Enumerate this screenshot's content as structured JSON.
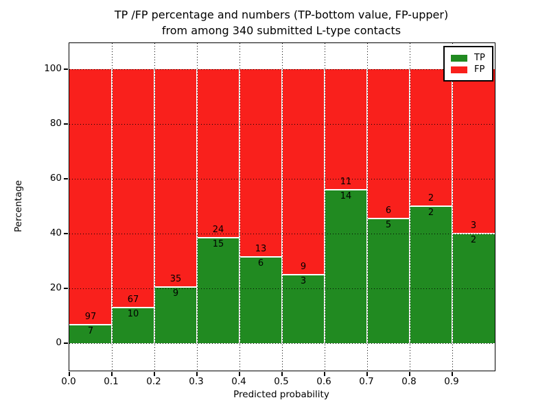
{
  "title": {
    "line1": "TP /FP percentage and numbers (TP-bottom value, FP-upper)",
    "line2": "from among 340 submitted L-type contacts"
  },
  "chart_data": {
    "type": "bar",
    "stacked": true,
    "normalized_to_percent": true,
    "title": "TP /FP percentage and numbers (TP-bottom value, FP-upper) from among 340 submitted L-type contacts",
    "xlabel": "Predicted probability",
    "ylabel": "Percentage",
    "categories": [
      "0.0",
      "0.1",
      "0.2",
      "0.3",
      "0.4",
      "0.5",
      "0.6",
      "0.7",
      "0.8",
      "0.9"
    ],
    "x_bin_width": 0.1,
    "series": [
      {
        "name": "TP",
        "color": "#218a21",
        "values": [
          7,
          10,
          9,
          15,
          6,
          3,
          14,
          5,
          2,
          2
        ]
      },
      {
        "name": "FP",
        "color": "#f9201c",
        "values": [
          97,
          67,
          35,
          24,
          13,
          9,
          11,
          6,
          2,
          3
        ]
      }
    ],
    "tp_percent_of_bin": [
      6.7,
      13.0,
      20.5,
      38.5,
      31.6,
      25.0,
      56.0,
      45.5,
      50.0,
      40.0
    ],
    "total_contacts": 340,
    "yticks": [
      0,
      20,
      40,
      60,
      80,
      100
    ],
    "ylim": [
      -10,
      110
    ],
    "xlim": [
      0.0,
      1.0
    ],
    "grid": true,
    "grid_style": "black dotted, white bar edges",
    "legend_position": "upper right",
    "background_color": "#ffffff"
  }
}
